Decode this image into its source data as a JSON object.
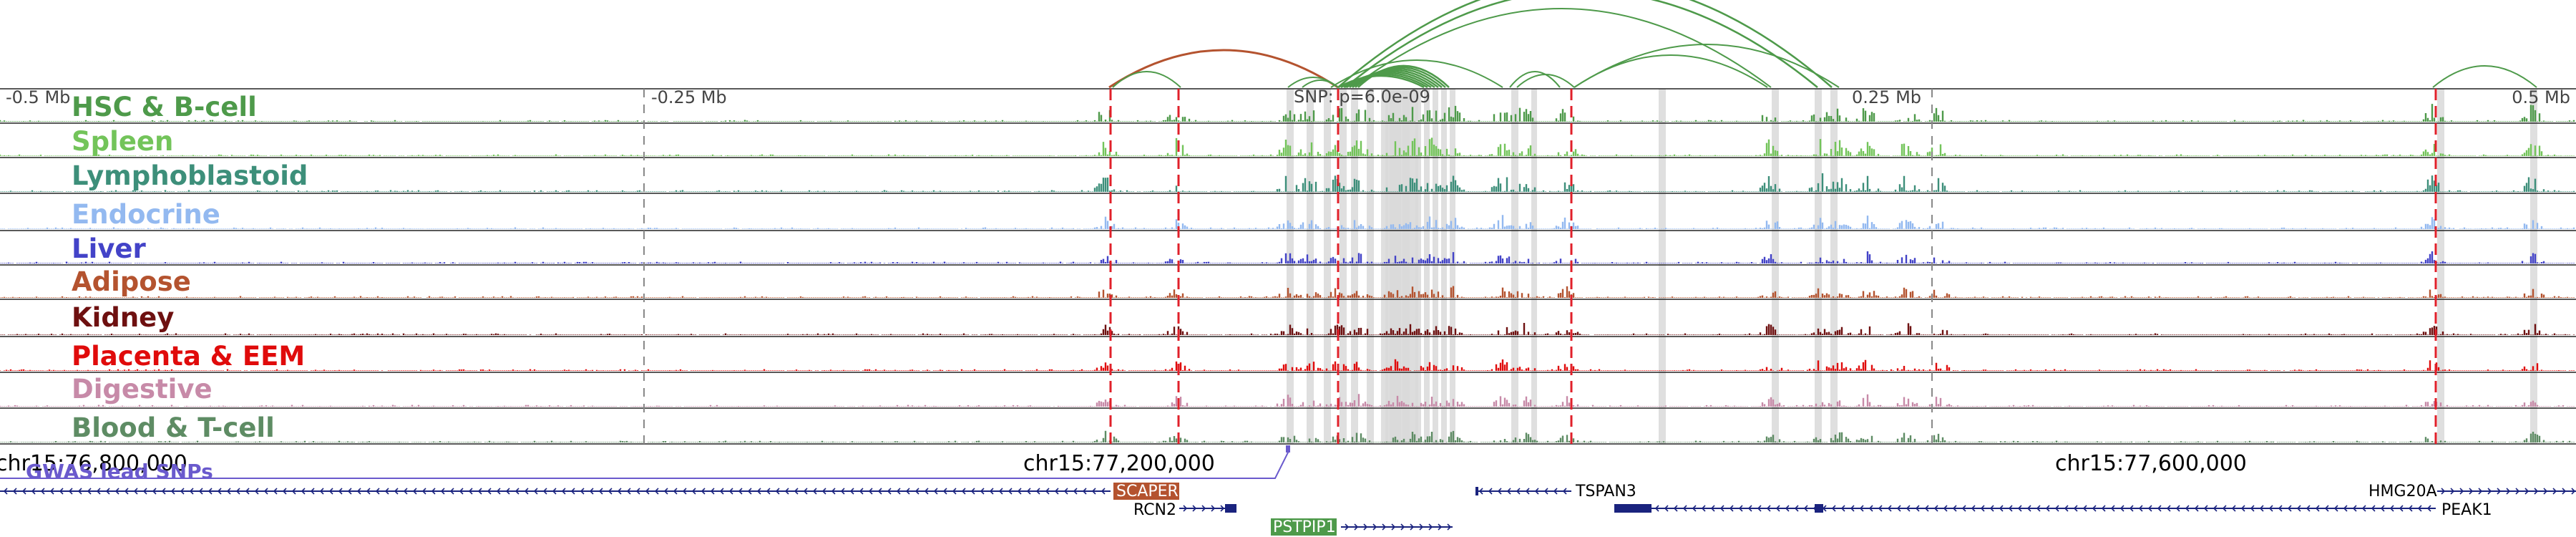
{
  "axis_marks": [
    "-0.5 Mb",
    "-0.25 Mb",
    "0.25 Mb",
    "0.5 Mb"
  ],
  "snp_label": "SNP: p=6.0e-09",
  "tracks": [
    {
      "name": "HSC & B-cell",
      "color": "#4e9a4a"
    },
    {
      "name": "Spleen",
      "color": "#73c45a"
    },
    {
      "name": "Lymphoblastoid",
      "color": "#3d8f7a"
    },
    {
      "name": "Endocrine",
      "color": "#93b9f0"
    },
    {
      "name": "Liver",
      "color": "#4343c8"
    },
    {
      "name": "Adipose",
      "color": "#b4532f"
    },
    {
      "name": "Kidney",
      "color": "#6e1010"
    },
    {
      "name": "Placenta & EEM",
      "color": "#e00b0b"
    },
    {
      "name": "Digestive",
      "color": "#c78aa8"
    },
    {
      "name": "Blood & T-cell",
      "color": "#5e8c64"
    }
  ],
  "coordinates": [
    "chr15:76,800,000",
    "chr15:77,200,000",
    "chr15:77,600,000"
  ],
  "gwas_label": "GWAS lead SNPs",
  "genes": [
    "SCAPER",
    "RCN2",
    "PSTPIP1",
    "TSPAN3",
    "HMG20A",
    "PEAK1"
  ],
  "colors": {
    "loop_green": "#4e9a4a",
    "loop_red": "#b4532f",
    "dashed_red": "#e0202a",
    "gwas": "#6a5acd",
    "gene": "#1a237e",
    "highlight": "#d9d9d9"
  }
}
